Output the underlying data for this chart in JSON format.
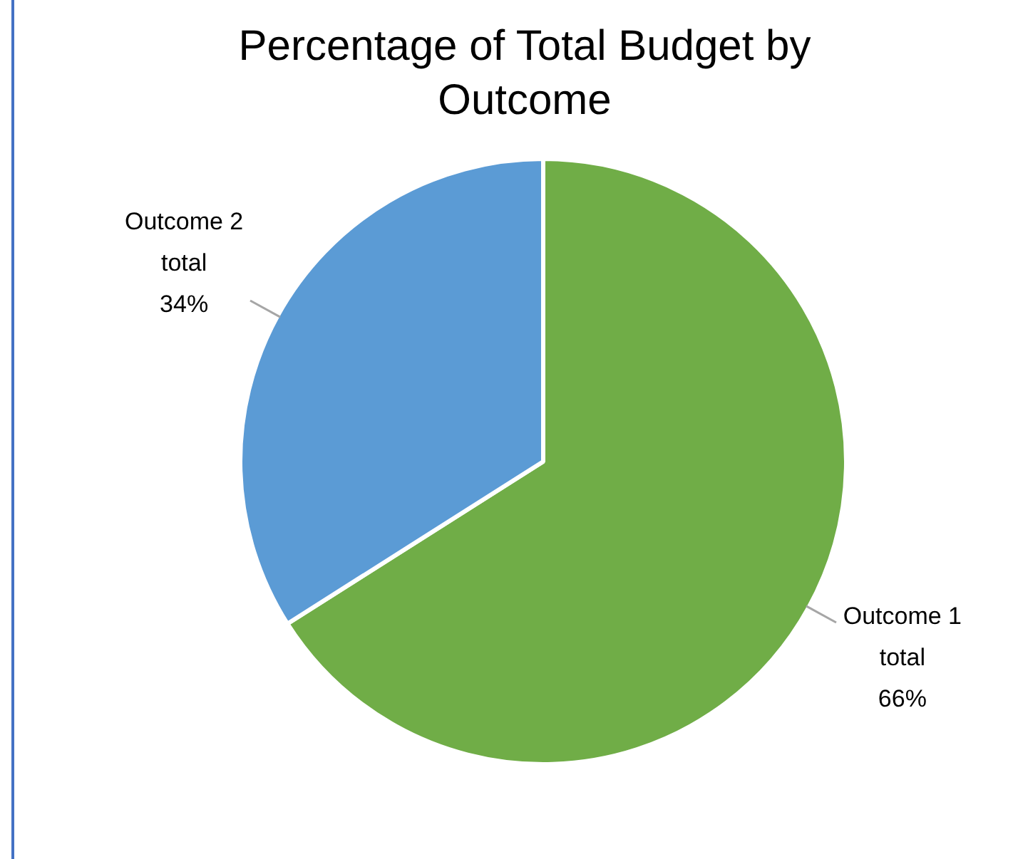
{
  "chart_data": {
    "type": "pie",
    "title": "Percentage of Total Budget by Outcome",
    "categories": [
      "Outcome 1 total",
      "Outcome 2 total"
    ],
    "values": [
      66,
      34
    ],
    "colors": [
      "#70ad47",
      "#5b9bd5"
    ],
    "value_labels": [
      "66%",
      "34%"
    ],
    "legend": false
  }
}
